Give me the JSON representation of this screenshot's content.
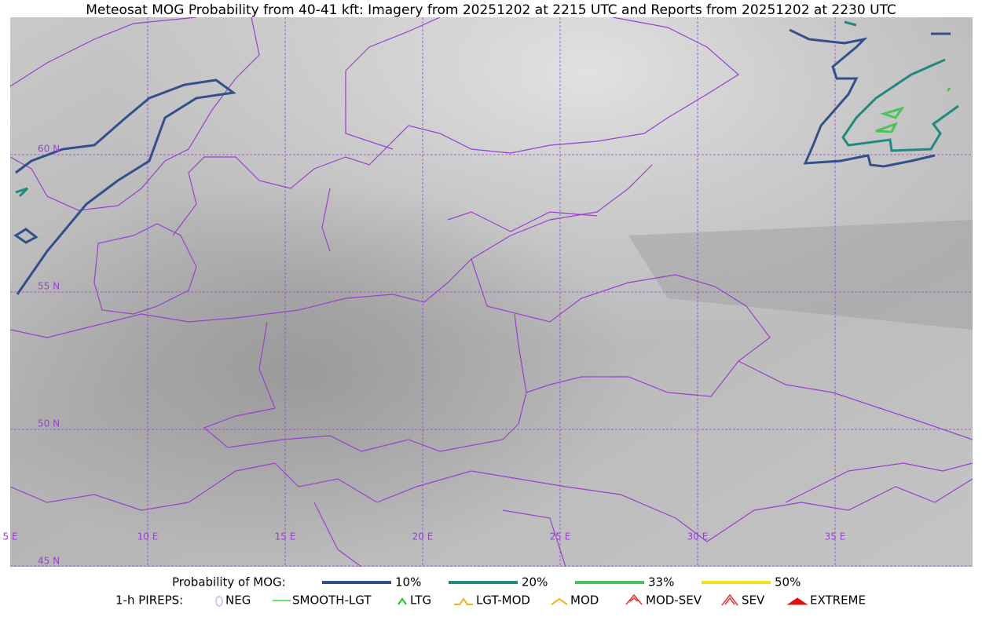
{
  "title": "Meteosat MOG Probability from 40-41 kft: Imagery from 20251202 at 2215 UTC and Reports from 20251202 at 2230 UTC",
  "map": {
    "lat_labels": [
      "60 N",
      "55 N",
      "50 N",
      "45 N"
    ],
    "lon_labels": [
      "5 E",
      "10 E",
      "15 E",
      "20 E",
      "25 E",
      "30 E",
      "35 E"
    ]
  },
  "legend": {
    "mog_title": "Probability of MOG:",
    "mog_items": [
      {
        "label": "10%",
        "color": "#34508c"
      },
      {
        "label": "20%",
        "color": "#1f8a80"
      },
      {
        "label": "33%",
        "color": "#4cc25a"
      },
      {
        "label": "50%",
        "color": "#f5e11a"
      }
    ],
    "pirep_title": "1-h PIREPS:",
    "pirep_items": [
      {
        "label": "NEG",
        "color": "#c8c8f0"
      },
      {
        "label": "SMOOTH-LGT",
        "color": "#3ddc3d"
      },
      {
        "label": "LTG",
        "color": "#1ec81e"
      },
      {
        "label": "LGT-MOD",
        "color": "#f5b01a"
      },
      {
        "label": "MOD",
        "color": "#f5b01a"
      },
      {
        "label": "MOD-SEV",
        "color": "#e83030"
      },
      {
        "label": "SEV",
        "color": "#e83030"
      },
      {
        "label": "EXTREME",
        "color": "#e01010"
      }
    ]
  }
}
